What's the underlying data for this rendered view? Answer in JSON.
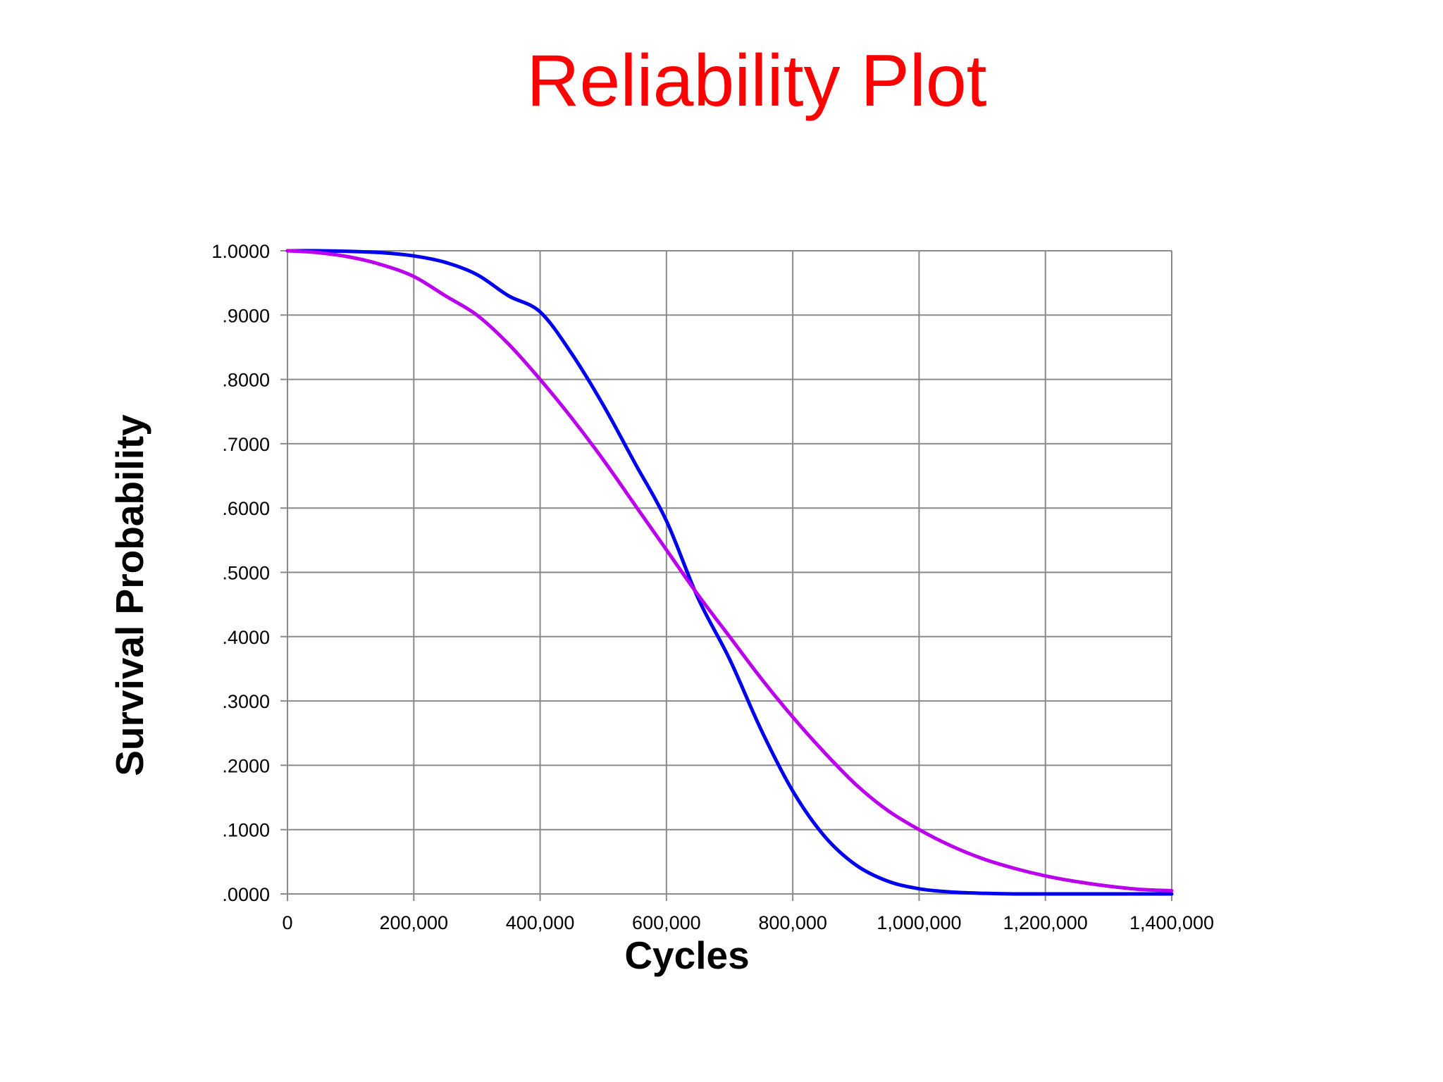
{
  "chart_data": {
    "type": "line",
    "title": "Reliability Plot",
    "xlabel": "Cycles",
    "ylabel": "Survival Probability",
    "xlim": [
      0,
      1400000
    ],
    "ylim": [
      0,
      1
    ],
    "x_ticks": [
      0,
      200000,
      400000,
      600000,
      800000,
      1000000,
      1200000,
      1400000
    ],
    "x_tick_labels": [
      "0",
      "200,000",
      "400,000",
      "600,000",
      "800,000",
      "1,000,000",
      "1,200,000",
      "1,400,000"
    ],
    "y_ticks": [
      0,
      0.1,
      0.2,
      0.3,
      0.4,
      0.5,
      0.6,
      0.7,
      0.8,
      0.9,
      1.0
    ],
    "y_tick_labels": [
      ".0000",
      ".1000",
      ".2000",
      ".3000",
      ".4000",
      ".5000",
      ".6000",
      ".7000",
      ".8000",
      ".9000",
      "1.0000"
    ],
    "grid": true,
    "legend": "none",
    "colors": {
      "title": "#ff0000",
      "grid": "#8a8a8a"
    },
    "series": [
      {
        "color": "#0000ee",
        "x": [
          0,
          50000,
          100000,
          150000,
          200000,
          250000,
          300000,
          350000,
          400000,
          450000,
          500000,
          550000,
          600000,
          650000,
          700000,
          750000,
          800000,
          850000,
          900000,
          950000,
          1000000,
          1050000,
          1100000,
          1150000,
          1200000,
          1250000,
          1300000,
          1350000,
          1400000
        ],
        "y": [
          1.0,
          1.0,
          0.999,
          0.997,
          0.992,
          0.982,
          0.963,
          0.93,
          0.905,
          0.84,
          0.76,
          0.67,
          0.58,
          0.46,
          0.365,
          0.255,
          0.16,
          0.09,
          0.045,
          0.02,
          0.008,
          0.003,
          0.001,
          0.0,
          0.0,
          0.0,
          0.0,
          0.0,
          0.0
        ]
      },
      {
        "color": "#bb00ee",
        "x": [
          0,
          50000,
          100000,
          150000,
          200000,
          250000,
          300000,
          350000,
          400000,
          450000,
          500000,
          550000,
          600000,
          650000,
          700000,
          750000,
          800000,
          850000,
          900000,
          950000,
          1000000,
          1050000,
          1100000,
          1150000,
          1200000,
          1250000,
          1300000,
          1350000,
          1400000
        ],
        "y": [
          1.0,
          0.997,
          0.99,
          0.978,
          0.96,
          0.93,
          0.9,
          0.855,
          0.8,
          0.74,
          0.675,
          0.605,
          0.535,
          0.465,
          0.4,
          0.335,
          0.275,
          0.22,
          0.17,
          0.13,
          0.1,
          0.075,
          0.055,
          0.04,
          0.028,
          0.019,
          0.012,
          0.007,
          0.005
        ]
      }
    ]
  }
}
